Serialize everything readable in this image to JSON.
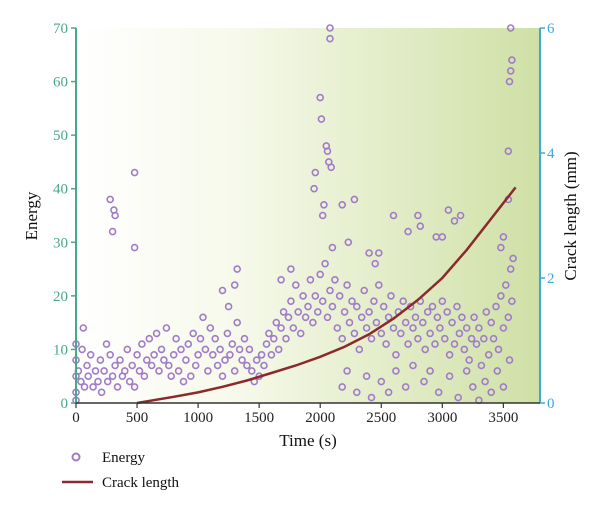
{
  "chart_data": {
    "type": "scatter",
    "xlabel": "Time (s)",
    "ylabel_left": "Energy",
    "ylabel_right": "Crack length (mm)",
    "xlim": [
      0,
      3800
    ],
    "ylim_left": [
      0,
      70
    ],
    "ylim_right": [
      0,
      6
    ],
    "x_ticks": [
      0,
      500,
      1000,
      1500,
      2000,
      2500,
      3000,
      3500
    ],
    "y_ticks_left": [
      0,
      10,
      20,
      30,
      40,
      50,
      60,
      70
    ],
    "y_ticks_right": [
      0,
      2,
      4,
      6
    ],
    "grid": false,
    "legend_position": "bottom-left",
    "colors": {
      "energy": "#a07cc8",
      "crack": "#8b2a2a",
      "left_axis": "#4aa88a",
      "right_axis": "#3ea8d8",
      "bg_light": "#ffffff",
      "bg_dark": "#cfe0a6"
    },
    "series": [
      {
        "name": "Energy",
        "kind": "scatter",
        "axis": "left",
        "points": [
          [
            0,
            8
          ],
          [
            0,
            11
          ],
          [
            0,
            5
          ],
          [
            0,
            2
          ],
          [
            0,
            0.5
          ],
          [
            20,
            6
          ],
          [
            40,
            4
          ],
          [
            50,
            10
          ],
          [
            60,
            14
          ],
          [
            70,
            3
          ],
          [
            90,
            7
          ],
          [
            100,
            5
          ],
          [
            120,
            9
          ],
          [
            140,
            3
          ],
          [
            160,
            6
          ],
          [
            180,
            4
          ],
          [
            200,
            8
          ],
          [
            210,
            2
          ],
          [
            230,
            6
          ],
          [
            250,
            11
          ],
          [
            260,
            4
          ],
          [
            280,
            9
          ],
          [
            300,
            5
          ],
          [
            320,
            7
          ],
          [
            340,
            3
          ],
          [
            360,
            8
          ],
          [
            380,
            5
          ],
          [
            400,
            6
          ],
          [
            420,
            10
          ],
          [
            440,
            4
          ],
          [
            460,
            7
          ],
          [
            480,
            3
          ],
          [
            500,
            9
          ],
          [
            520,
            6
          ],
          [
            540,
            11
          ],
          [
            560,
            5
          ],
          [
            580,
            8
          ],
          [
            600,
            12
          ],
          [
            620,
            7
          ],
          [
            640,
            9
          ],
          [
            660,
            13
          ],
          [
            680,
            6
          ],
          [
            700,
            10
          ],
          [
            720,
            8
          ],
          [
            740,
            14
          ],
          [
            760,
            7
          ],
          [
            780,
            5
          ],
          [
            800,
            9
          ],
          [
            820,
            12
          ],
          [
            840,
            6
          ],
          [
            860,
            10
          ],
          [
            880,
            4
          ],
          [
            900,
            8
          ],
          [
            920,
            11
          ],
          [
            940,
            5
          ],
          [
            960,
            13
          ],
          [
            980,
            7
          ],
          [
            1000,
            9
          ],
          [
            1020,
            12
          ],
          [
            1040,
            16
          ],
          [
            1060,
            10
          ],
          [
            1080,
            6
          ],
          [
            1100,
            14
          ],
          [
            1120,
            9
          ],
          [
            1140,
            12
          ],
          [
            1160,
            7
          ],
          [
            1180,
            10
          ],
          [
            1200,
            5
          ],
          [
            1220,
            8
          ],
          [
            1240,
            13
          ],
          [
            1260,
            9
          ],
          [
            1280,
            11
          ],
          [
            1300,
            6
          ],
          [
            1320,
            15
          ],
          [
            1340,
            10
          ],
          [
            1360,
            8
          ],
          [
            1380,
            12
          ],
          [
            1400,
            7
          ],
          [
            1420,
            10
          ],
          [
            1440,
            6
          ],
          [
            1460,
            4
          ],
          [
            1480,
            8
          ],
          [
            1500,
            5
          ],
          [
            1520,
            9
          ],
          [
            1540,
            7
          ],
          [
            1560,
            11
          ],
          [
            1580,
            13
          ],
          [
            1600,
            9
          ],
          [
            1620,
            12
          ],
          [
            1640,
            15
          ],
          [
            1660,
            10
          ],
          [
            1680,
            14
          ],
          [
            1700,
            17
          ],
          [
            1720,
            12
          ],
          [
            1740,
            16
          ],
          [
            1760,
            19
          ],
          [
            1780,
            14
          ],
          [
            1800,
            22
          ],
          [
            1820,
            17
          ],
          [
            1840,
            13
          ],
          [
            1860,
            20
          ],
          [
            1880,
            16
          ],
          [
            1900,
            18
          ],
          [
            1920,
            23
          ],
          [
            1940,
            15
          ],
          [
            1960,
            20
          ],
          [
            1980,
            17
          ],
          [
            2000,
            24
          ],
          [
            2020,
            19
          ],
          [
            2040,
            26
          ],
          [
            2060,
            16
          ],
          [
            2080,
            21
          ],
          [
            2100,
            18
          ],
          [
            2120,
            23
          ],
          [
            2140,
            14
          ],
          [
            2160,
            20
          ],
          [
            2180,
            12
          ],
          [
            2200,
            17
          ],
          [
            2220,
            22
          ],
          [
            2240,
            15
          ],
          [
            2260,
            19
          ],
          [
            2280,
            13
          ],
          [
            2300,
            18
          ],
          [
            2320,
            10
          ],
          [
            2340,
            16
          ],
          [
            2360,
            21
          ],
          [
            2380,
            14
          ],
          [
            2400,
            17
          ],
          [
            2420,
            12
          ],
          [
            2440,
            19
          ],
          [
            2460,
            15
          ],
          [
            2480,
            22
          ],
          [
            2500,
            13
          ],
          [
            2520,
            18
          ],
          [
            2540,
            11
          ],
          [
            2560,
            16
          ],
          [
            2580,
            20
          ],
          [
            2600,
            14
          ],
          [
            2620,
            9
          ],
          [
            2640,
            17
          ],
          [
            2660,
            13
          ],
          [
            2680,
            19
          ],
          [
            2700,
            15
          ],
          [
            2720,
            11
          ],
          [
            2740,
            18
          ],
          [
            2760,
            14
          ],
          [
            2780,
            16
          ],
          [
            2800,
            12
          ],
          [
            2820,
            19
          ],
          [
            2840,
            15
          ],
          [
            2860,
            10
          ],
          [
            2880,
            17
          ],
          [
            2900,
            13
          ],
          [
            2920,
            18
          ],
          [
            2940,
            11
          ],
          [
            2960,
            16
          ],
          [
            2980,
            14
          ],
          [
            3000,
            19
          ],
          [
            3020,
            12
          ],
          [
            3040,
            17
          ],
          [
            3060,
            9
          ],
          [
            3080,
            15
          ],
          [
            3100,
            11
          ],
          [
            3120,
            18
          ],
          [
            3140,
            13
          ],
          [
            3160,
            16
          ],
          [
            3180,
            10
          ],
          [
            3200,
            14
          ],
          [
            3220,
            8
          ],
          [
            3240,
            12
          ],
          [
            3260,
            16
          ],
          [
            3280,
            11
          ],
          [
            3300,
            14
          ],
          [
            3320,
            7
          ],
          [
            3340,
            12
          ],
          [
            3360,
            17
          ],
          [
            3380,
            9
          ],
          [
            3400,
            15
          ],
          [
            3420,
            12
          ],
          [
            3440,
            18
          ],
          [
            3460,
            10
          ],
          [
            3480,
            20
          ],
          [
            3500,
            14
          ],
          [
            3520,
            22
          ],
          [
            3540,
            16
          ],
          [
            3560,
            25
          ],
          [
            3570,
            19
          ],
          [
            280,
            38
          ],
          [
            300,
            32
          ],
          [
            310,
            36
          ],
          [
            320,
            35
          ],
          [
            480,
            43
          ],
          [
            480,
            29
          ],
          [
            1200,
            21
          ],
          [
            1250,
            18
          ],
          [
            1300,
            22
          ],
          [
            1320,
            25
          ],
          [
            1680,
            23
          ],
          [
            1760,
            25
          ],
          [
            1950,
            40
          ],
          [
            1960,
            43
          ],
          [
            2000,
            57
          ],
          [
            2010,
            53
          ],
          [
            2020,
            35
          ],
          [
            2030,
            37
          ],
          [
            2050,
            48
          ],
          [
            2060,
            47
          ],
          [
            2070,
            45
          ],
          [
            2080,
            68
          ],
          [
            2080,
            70
          ],
          [
            2090,
            44
          ],
          [
            2100,
            29
          ],
          [
            2180,
            37
          ],
          [
            2230,
            30
          ],
          [
            2280,
            38
          ],
          [
            2400,
            28
          ],
          [
            2450,
            26
          ],
          [
            2480,
            28
          ],
          [
            2600,
            35
          ],
          [
            2720,
            32
          ],
          [
            2800,
            35
          ],
          [
            2820,
            33
          ],
          [
            2950,
            31
          ],
          [
            3000,
            31
          ],
          [
            3050,
            36
          ],
          [
            3100,
            34
          ],
          [
            3150,
            35
          ],
          [
            3480,
            29
          ],
          [
            3500,
            31
          ],
          [
            3540,
            38
          ],
          [
            3550,
            60
          ],
          [
            3560,
            62
          ],
          [
            3570,
            64
          ],
          [
            3560,
            70
          ],
          [
            3540,
            47
          ],
          [
            3580,
            27
          ],
          [
            2180,
            3
          ],
          [
            2220,
            6
          ],
          [
            2300,
            2
          ],
          [
            2380,
            5
          ],
          [
            2420,
            1
          ],
          [
            2500,
            4
          ],
          [
            2560,
            2
          ],
          [
            2620,
            6
          ],
          [
            2700,
            3
          ],
          [
            2760,
            7
          ],
          [
            2850,
            4
          ],
          [
            2900,
            6
          ],
          [
            2970,
            2
          ],
          [
            3060,
            5
          ],
          [
            3130,
            1
          ],
          [
            3200,
            6
          ],
          [
            3250,
            3
          ],
          [
            3300,
            0.5
          ],
          [
            3350,
            4
          ],
          [
            3400,
            2
          ],
          [
            3450,
            6
          ],
          [
            3500,
            3
          ],
          [
            3550,
            8
          ]
        ]
      },
      {
        "name": "Crack length",
        "kind": "line",
        "axis": "right",
        "points": [
          [
            500,
            0
          ],
          [
            800,
            0.1
          ],
          [
            1000,
            0.17
          ],
          [
            1200,
            0.26
          ],
          [
            1400,
            0.36
          ],
          [
            1600,
            0.48
          ],
          [
            1800,
            0.6
          ],
          [
            2000,
            0.74
          ],
          [
            2200,
            0.9
          ],
          [
            2400,
            1.1
          ],
          [
            2600,
            1.35
          ],
          [
            2800,
            1.65
          ],
          [
            3000,
            2.0
          ],
          [
            3200,
            2.45
          ],
          [
            3400,
            2.95
          ],
          [
            3600,
            3.45
          ]
        ]
      }
    ]
  }
}
